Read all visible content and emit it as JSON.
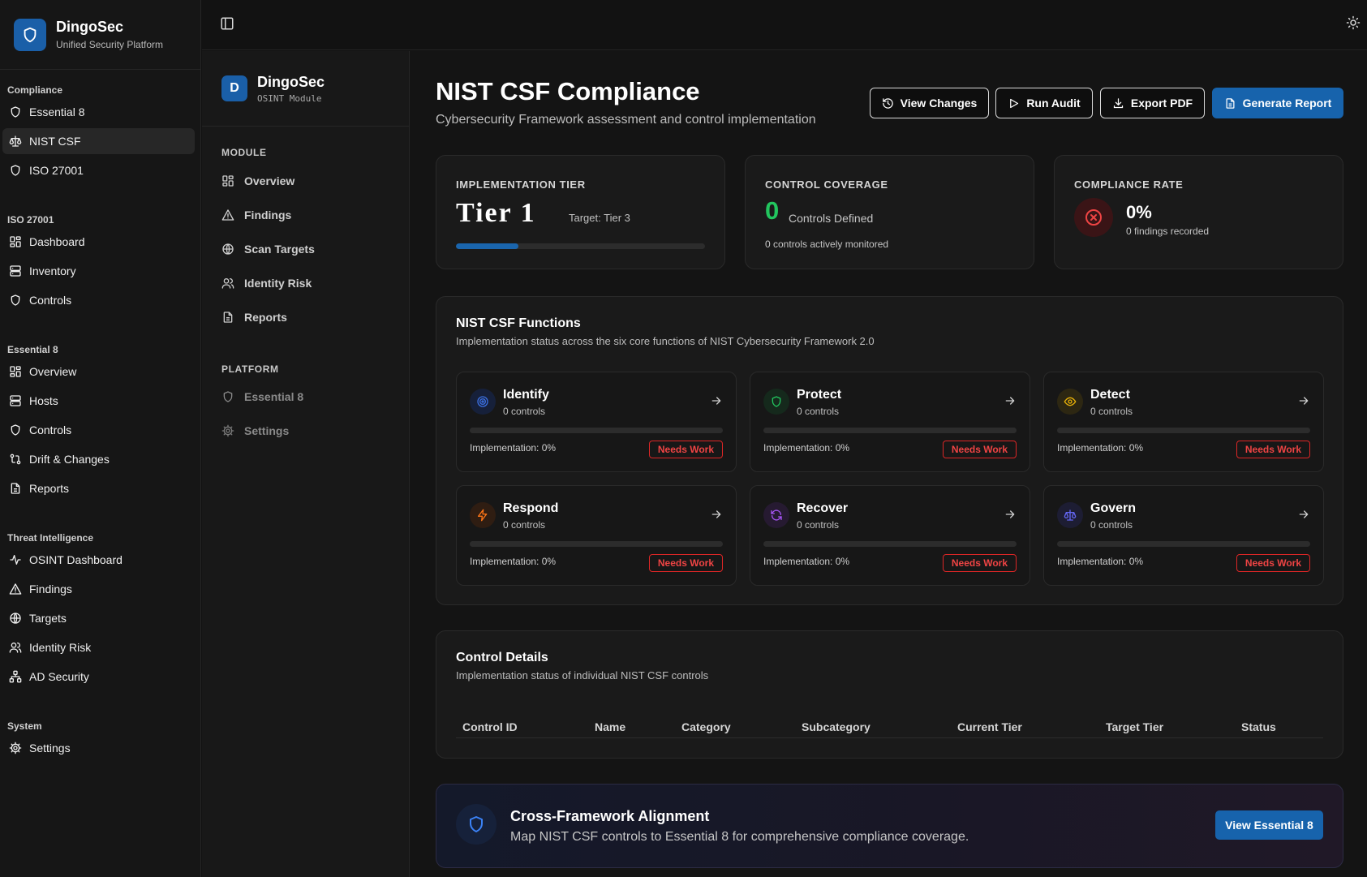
{
  "brand": {
    "name": "DingoSec",
    "subtitle": "Unified Security Platform",
    "accent": "#1a5fa8"
  },
  "sidebar": {
    "groups": [
      {
        "title": "Compliance",
        "items": [
          {
            "label": "Essential 8",
            "icon": "shield-icon"
          },
          {
            "label": "NIST CSF",
            "icon": "scale-icon",
            "active": true
          },
          {
            "label": "ISO 27001",
            "icon": "shield-icon"
          }
        ]
      },
      {
        "title": "ISO 27001",
        "items": [
          {
            "label": "Dashboard",
            "icon": "dashboard-icon"
          },
          {
            "label": "Inventory",
            "icon": "server-icon"
          },
          {
            "label": "Controls",
            "icon": "shield-icon"
          }
        ]
      },
      {
        "title": "Essential 8",
        "items": [
          {
            "label": "Overview",
            "icon": "dashboard-icon"
          },
          {
            "label": "Hosts",
            "icon": "server-icon"
          },
          {
            "label": "Controls",
            "icon": "shield-icon"
          },
          {
            "label": "Drift & Changes",
            "icon": "git-compare-icon"
          },
          {
            "label": "Reports",
            "icon": "file-icon"
          }
        ]
      },
      {
        "title": "Threat Intelligence",
        "items": [
          {
            "label": "OSINT Dashboard",
            "icon": "activity-icon"
          },
          {
            "label": "Findings",
            "icon": "alert-triangle-icon"
          },
          {
            "label": "Targets",
            "icon": "globe-icon"
          },
          {
            "label": "Identity Risk",
            "icon": "users-icon"
          },
          {
            "label": "AD Security",
            "icon": "network-icon"
          }
        ]
      },
      {
        "title": "System",
        "items": [
          {
            "label": "Settings",
            "icon": "gear-icon"
          }
        ]
      }
    ]
  },
  "module": {
    "avatar": "D",
    "title": "DingoSec",
    "subtitle": "OSINT Module",
    "section_module": "MODULE",
    "items": [
      {
        "label": "Overview",
        "icon": "dashboard-icon"
      },
      {
        "label": "Findings",
        "icon": "alert-triangle-icon"
      },
      {
        "label": "Scan Targets",
        "icon": "globe-icon"
      },
      {
        "label": "Identity Risk",
        "icon": "users-icon"
      },
      {
        "label": "Reports",
        "icon": "file-icon"
      }
    ],
    "section_platform": "PLATFORM",
    "platform_items": [
      {
        "label": "Essential 8",
        "icon": "shield-icon"
      },
      {
        "label": "Settings",
        "icon": "gear-icon"
      }
    ]
  },
  "header": {
    "title": "NIST CSF Compliance",
    "subtitle": "Cybersecurity Framework assessment and control implementation",
    "buttons": {
      "view_changes": "View Changes",
      "run_audit": "Run Audit",
      "export_pdf": "Export PDF",
      "generate_report": "Generate Report"
    }
  },
  "stats": {
    "tier": {
      "label": "IMPLEMENTATION TIER",
      "value": "Tier 1",
      "target": "Target: Tier 3",
      "progress": 0.25
    },
    "coverage": {
      "label": "CONTROL COVERAGE",
      "value": "0",
      "value_label": "Controls Defined",
      "note": "0 controls actively monitored"
    },
    "compliance": {
      "label": "COMPLIANCE RATE",
      "value": "0%",
      "note": "0 findings recorded"
    }
  },
  "functions": {
    "title": "NIST CSF Functions",
    "subtitle": "Implementation status across the six core functions of NIST Cybersecurity Framework 2.0",
    "items": [
      {
        "name": "Identify",
        "controls": "0 controls",
        "implementation": "Implementation: 0%",
        "progress": 0,
        "status": "Needs Work",
        "icon": "target-icon",
        "color": "#3b6fe0"
      },
      {
        "name": "Protect",
        "controls": "0 controls",
        "implementation": "Implementation: 0%",
        "progress": 0,
        "status": "Needs Work",
        "icon": "shield-icon",
        "color": "#22c55e"
      },
      {
        "name": "Detect",
        "controls": "0 controls",
        "implementation": "Implementation: 0%",
        "progress": 0,
        "status": "Needs Work",
        "icon": "eye-icon",
        "color": "#eab308"
      },
      {
        "name": "Respond",
        "controls": "0 controls",
        "implementation": "Implementation: 0%",
        "progress": 0,
        "status": "Needs Work",
        "icon": "zap-icon",
        "color": "#f97316"
      },
      {
        "name": "Recover",
        "controls": "0 controls",
        "implementation": "Implementation: 0%",
        "progress": 0,
        "status": "Needs Work",
        "icon": "refresh-icon",
        "color": "#a855f7"
      },
      {
        "name": "Govern",
        "controls": "0 controls",
        "implementation": "Implementation: 0%",
        "progress": 0,
        "status": "Needs Work",
        "icon": "scale-icon",
        "color": "#6366f1"
      }
    ]
  },
  "control_details": {
    "title": "Control Details",
    "subtitle": "Implementation status of individual NIST CSF controls",
    "columns": [
      "Control ID",
      "Name",
      "Category",
      "Subcategory",
      "Current Tier",
      "Target Tier",
      "Status"
    ]
  },
  "cross_framework": {
    "title": "Cross-Framework Alignment",
    "subtitle": "Map NIST CSF controls to Essential 8 for comprehensive compliance coverage.",
    "button": "View Essential 8"
  },
  "colors": {
    "danger": "#ef4444",
    "success": "#22c55e",
    "primary": "#1763ac"
  }
}
